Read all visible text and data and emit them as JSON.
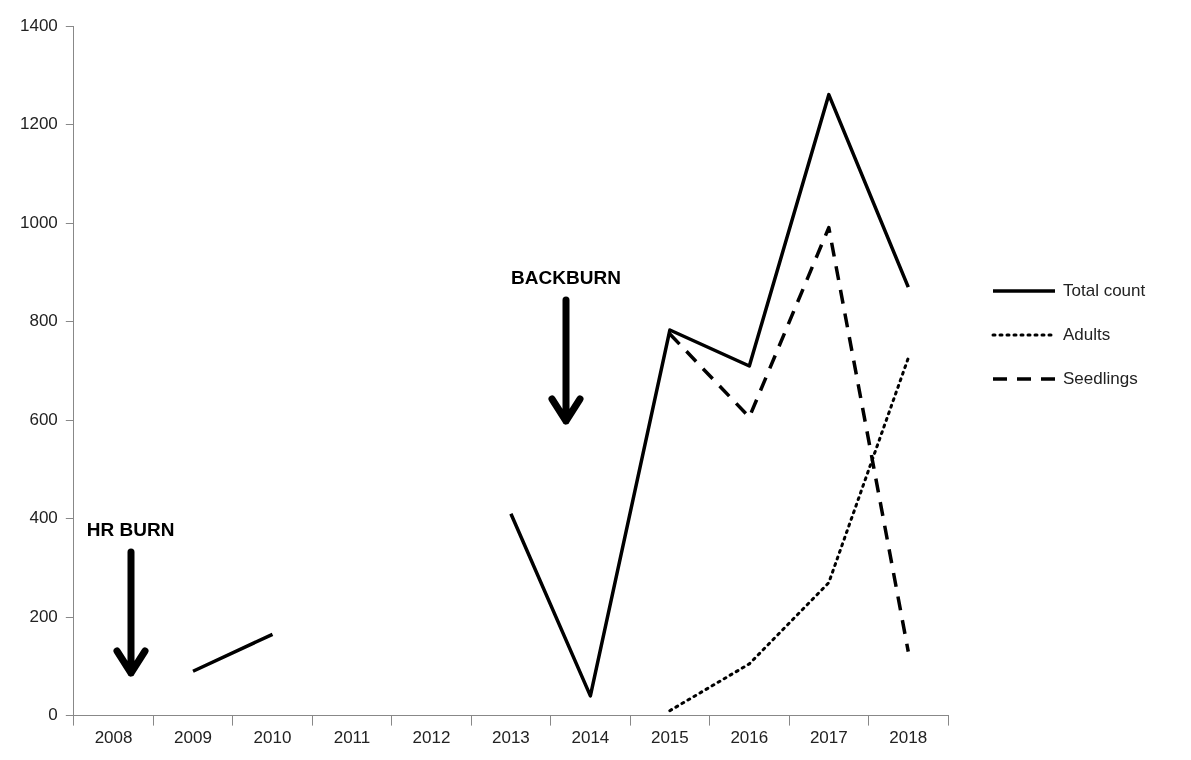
{
  "chart_data": {
    "type": "line",
    "categories": [
      "2008",
      "2009",
      "2010",
      "2011",
      "2012",
      "2013",
      "2014",
      "2015",
      "2016",
      "2017",
      "2018"
    ],
    "series": [
      {
        "name": "Total count",
        "color": "#000000",
        "line_style": "solid",
        "values": [
          null,
          90,
          165,
          null,
          null,
          410,
          40,
          783,
          710,
          1261,
          870
        ]
      },
      {
        "name": "Adults",
        "color": "#000000",
        "line_style": "dotted",
        "values": [
          null,
          null,
          null,
          null,
          null,
          null,
          null,
          10,
          105,
          270,
          726
        ]
      },
      {
        "name": "Seedlings",
        "color": "#000000",
        "line_style": "dashed",
        "values": [
          null,
          null,
          null,
          null,
          null,
          null,
          null,
          775,
          606,
          991,
          130
        ]
      }
    ],
    "ylim": [
      0,
      1400
    ],
    "yticks": [
      0,
      200,
      400,
      600,
      800,
      1000,
      1200,
      1400
    ],
    "grid": false,
    "legend": "right",
    "marker": "none",
    "annotations": [
      "HR BURN",
      "BACKBURN"
    ]
  }
}
